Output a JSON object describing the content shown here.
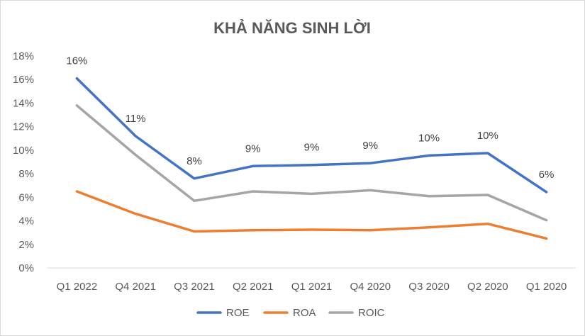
{
  "chart_data": {
    "type": "line",
    "title": "KHẢ NĂNG SINH LỜI",
    "xlabel": "",
    "ylabel": "",
    "ylim": [
      0,
      18
    ],
    "y_ticks": [
      "0%",
      "2%",
      "4%",
      "6%",
      "8%",
      "10%",
      "12%",
      "14%",
      "16%",
      "18%"
    ],
    "categories": [
      "Q1 2022",
      "Q4 2021",
      "Q3 2021",
      "Q2 2021",
      "Q1 2021",
      "Q4 2020",
      "Q3 2020",
      "Q2 2020",
      "Q1 2020"
    ],
    "series": [
      {
        "name": "ROE",
        "color": "#4472C4",
        "values": [
          16.1,
          11.2,
          7.6,
          8.65,
          8.75,
          8.9,
          9.55,
          9.75,
          6.45
        ],
        "labels": [
          "16%",
          "11%",
          "8%",
          "9%",
          "9%",
          "9%",
          "10%",
          "10%",
          "6%"
        ]
      },
      {
        "name": "ROA",
        "color": "#ED7D31",
        "values": [
          6.5,
          4.6,
          3.1,
          3.2,
          3.25,
          3.2,
          3.45,
          3.75,
          2.5
        ]
      },
      {
        "name": "ROIC",
        "color": "#A5A5A5",
        "values": [
          13.8,
          9.6,
          5.7,
          6.5,
          6.3,
          6.6,
          6.1,
          6.2,
          4.05
        ]
      }
    ],
    "legend_position": "bottom",
    "grid": false
  }
}
